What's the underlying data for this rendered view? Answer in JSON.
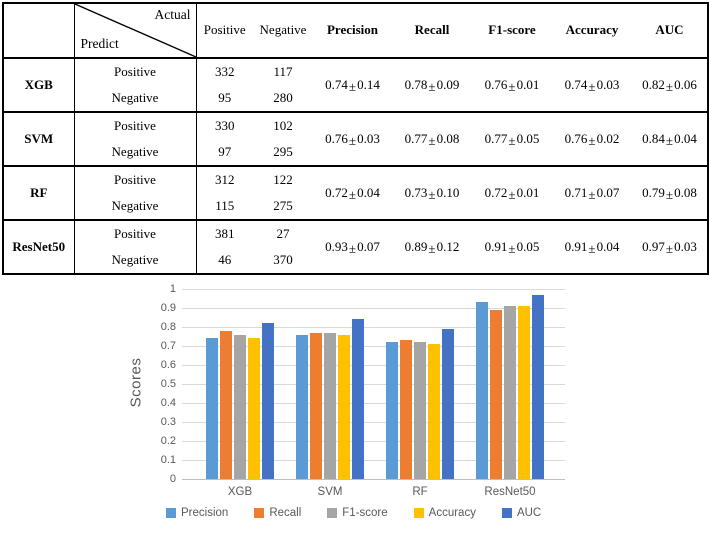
{
  "table": {
    "pm_symbol": "±",
    "header": {
      "actual_label": "Actual",
      "predict_label": "Predict",
      "count_cols": [
        "Positive",
        "Negative"
      ],
      "metric_cols": [
        "Precision",
        "Recall",
        "F1-score",
        "Accuracy",
        "AUC"
      ]
    },
    "groups": [
      {
        "model": "XGB",
        "rows": [
          {
            "label": "Positive",
            "pos": "332",
            "neg": "117"
          },
          {
            "label": "Negative",
            "pos": "95",
            "neg": "280"
          }
        ],
        "metrics": [
          {
            "mean": "0.74",
            "std": "0.14"
          },
          {
            "mean": "0.78",
            "std": "0.09"
          },
          {
            "mean": "0.76",
            "std": "0.01"
          },
          {
            "mean": "0.74",
            "std": "0.03"
          },
          {
            "mean": "0.82",
            "std": "0.06"
          }
        ]
      },
      {
        "model": "SVM",
        "rows": [
          {
            "label": "Positive",
            "pos": "330",
            "neg": "102"
          },
          {
            "label": "Negative",
            "pos": "97",
            "neg": "295"
          }
        ],
        "metrics": [
          {
            "mean": "0.76",
            "std": "0.03"
          },
          {
            "mean": "0.77",
            "std": "0.08"
          },
          {
            "mean": "0.77",
            "std": "0.05"
          },
          {
            "mean": "0.76",
            "std": "0.02"
          },
          {
            "mean": "0.84",
            "std": "0.04"
          }
        ]
      },
      {
        "model": "RF",
        "rows": [
          {
            "label": "Positive",
            "pos": "312",
            "neg": "122"
          },
          {
            "label": "Negative",
            "pos": "115",
            "neg": "275"
          }
        ],
        "metrics": [
          {
            "mean": "0.72",
            "std": "0.04"
          },
          {
            "mean": "0.73",
            "std": "0.10"
          },
          {
            "mean": "0.72",
            "std": "0.01"
          },
          {
            "mean": "0.71",
            "std": "0.07"
          },
          {
            "mean": "0.79",
            "std": "0.08"
          }
        ]
      },
      {
        "model": "ResNet50",
        "rows": [
          {
            "label": "Positive",
            "pos": "381",
            "neg": "27"
          },
          {
            "label": "Negative",
            "pos": "46",
            "neg": "370"
          }
        ],
        "metrics": [
          {
            "mean": "0.93",
            "std": "0.07"
          },
          {
            "mean": "0.89",
            "std": "0.12"
          },
          {
            "mean": "0.91",
            "std": "0.05"
          },
          {
            "mean": "0.91",
            "std": "0.04"
          },
          {
            "mean": "0.97",
            "std": "0.03"
          }
        ]
      }
    ]
  },
  "chart_data": {
    "type": "bar",
    "categories": [
      "XGB",
      "SVM",
      "RF",
      "ResNet50"
    ],
    "series": [
      {
        "name": "Precision",
        "color": "#5B9BD5",
        "values": [
          0.74,
          0.76,
          0.72,
          0.93
        ]
      },
      {
        "name": "Recall",
        "color": "#ED7D31",
        "values": [
          0.78,
          0.77,
          0.73,
          0.89
        ]
      },
      {
        "name": "F1-score",
        "color": "#A5A5A5",
        "values": [
          0.76,
          0.77,
          0.72,
          0.91
        ]
      },
      {
        "name": "Accuracy",
        "color": "#FFC000",
        "values": [
          0.74,
          0.76,
          0.71,
          0.91
        ]
      },
      {
        "name": "AUC",
        "color": "#4472C4",
        "values": [
          0.82,
          0.84,
          0.79,
          0.97
        ]
      }
    ],
    "title": "",
    "xlabel": "",
    "ylabel": "Scores",
    "ylim": [
      0,
      1
    ],
    "ytick_step": 0.1,
    "grid": true,
    "legend_position": "bottom"
  }
}
